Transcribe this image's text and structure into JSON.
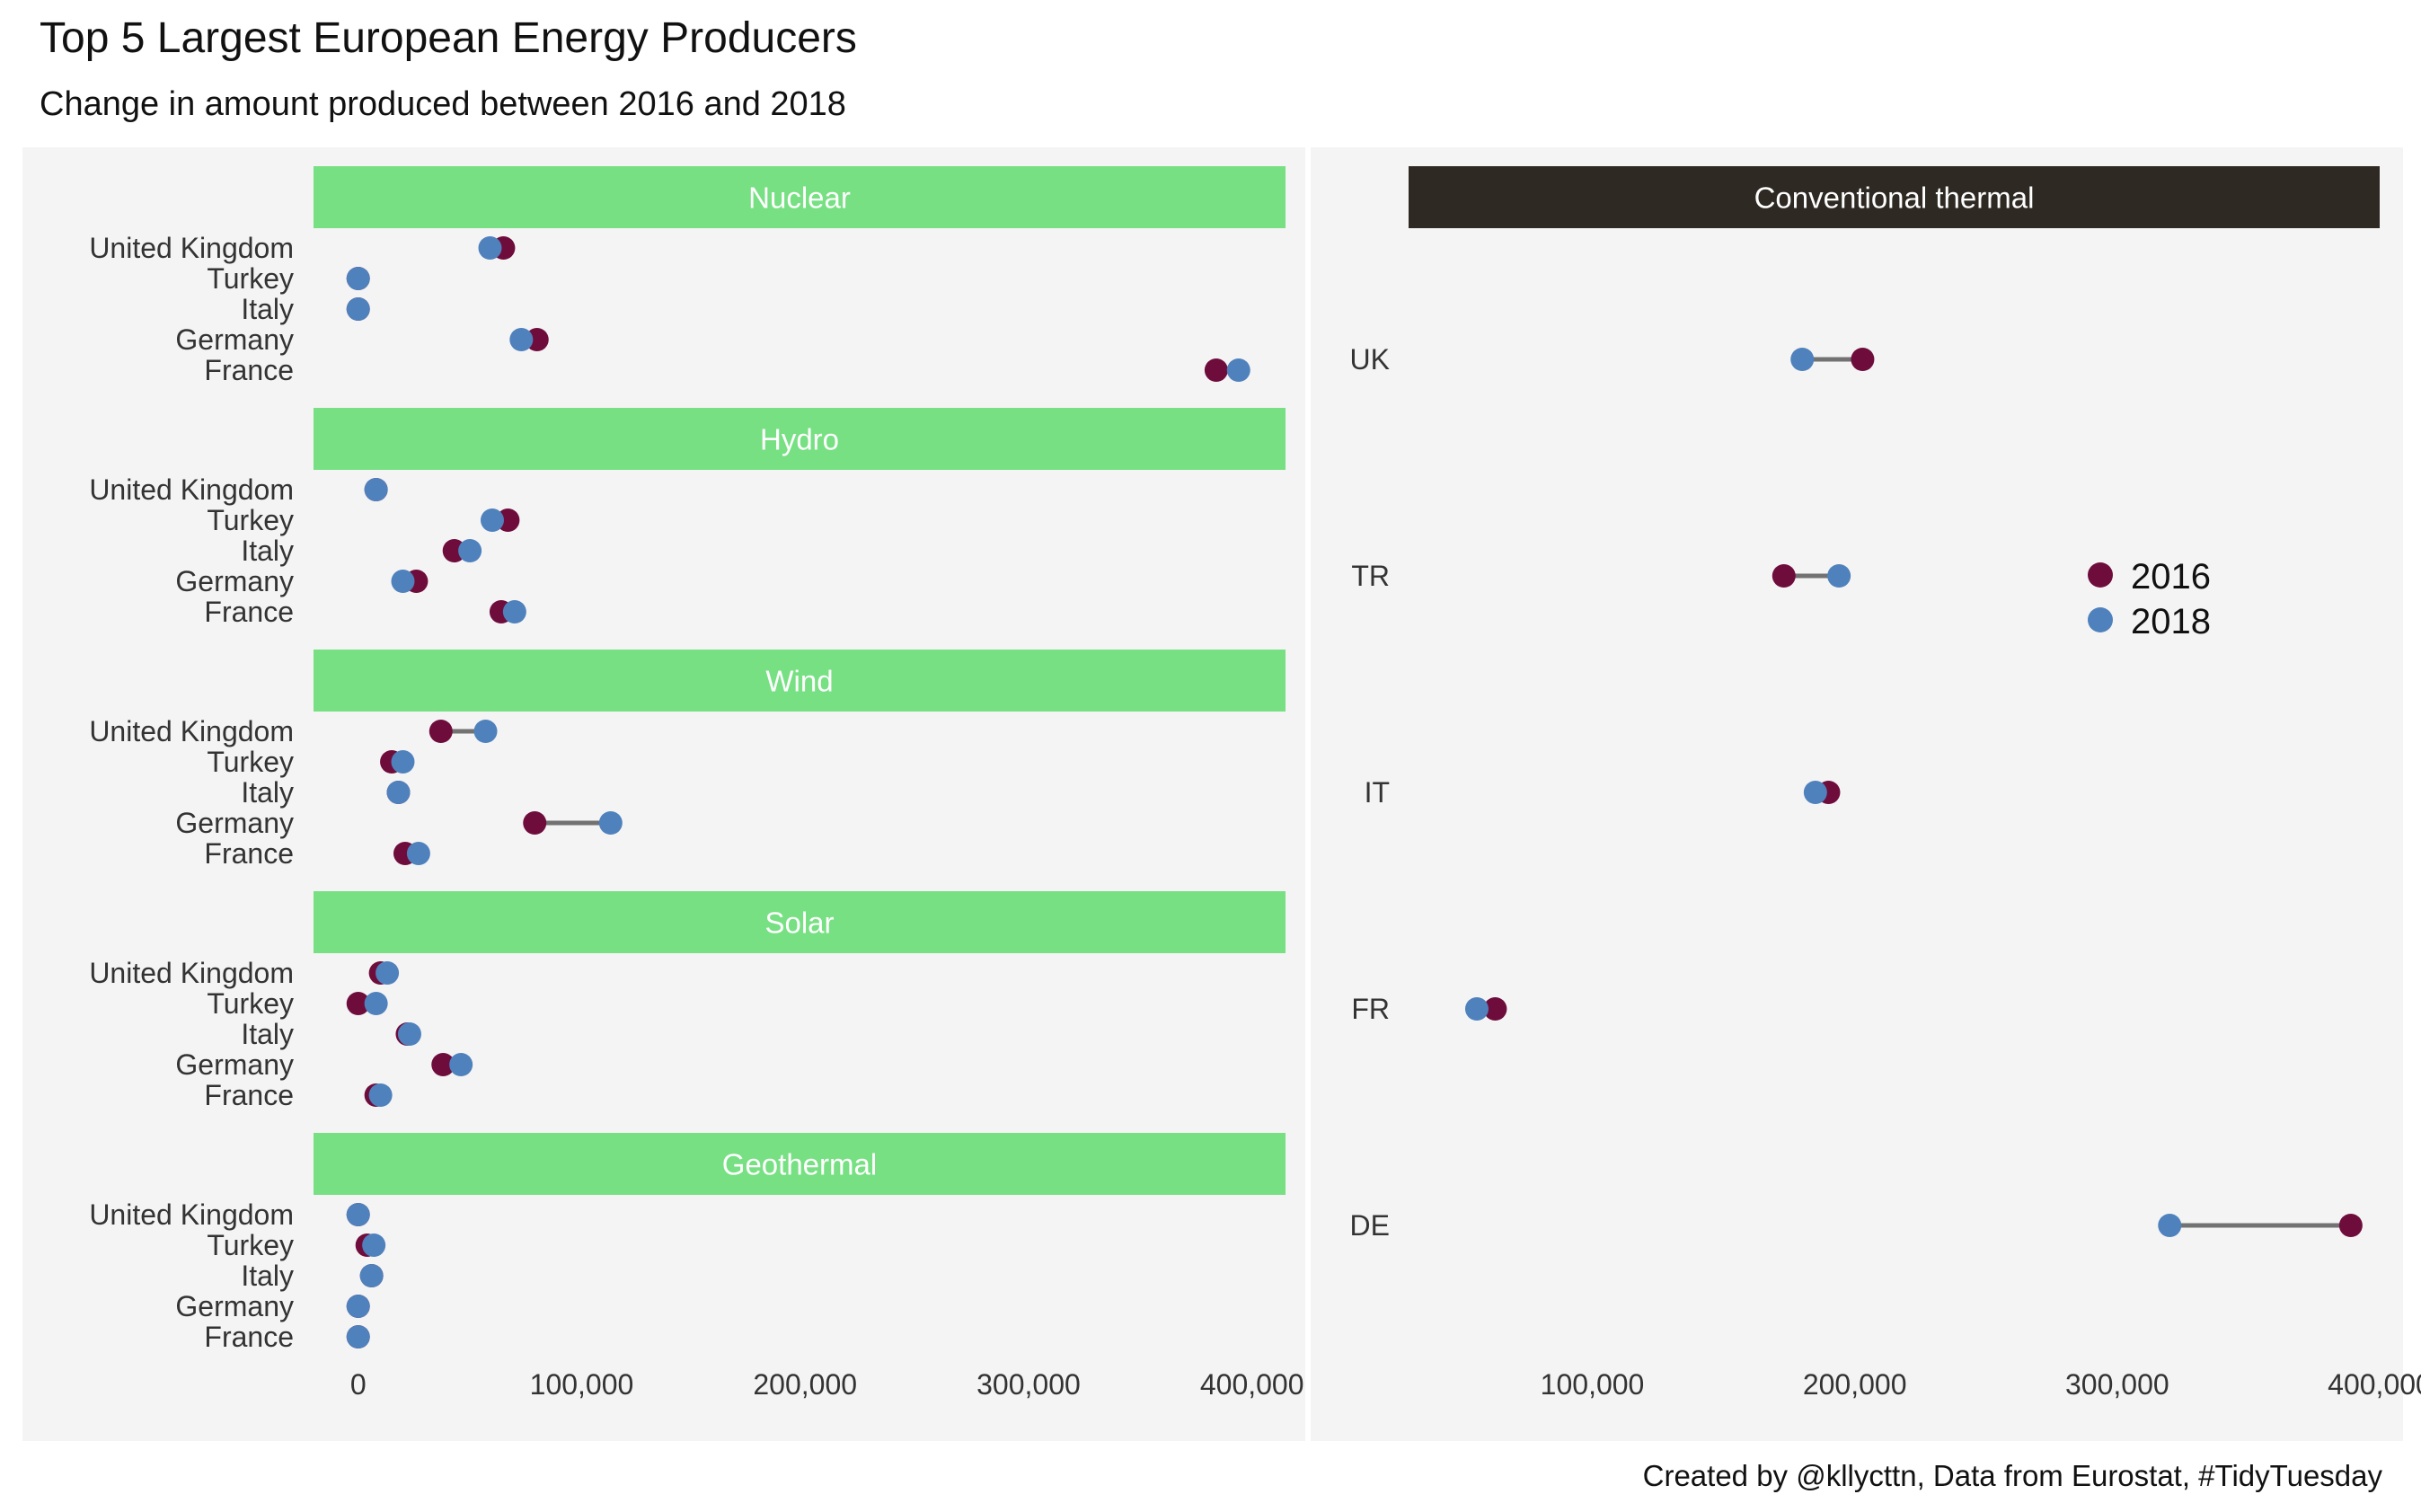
{
  "chart_data": {
    "type": "dumbbell",
    "title": "Top 5 Largest European Energy Producers",
    "subtitle": "Change in amount produced between 2016 and 2018",
    "caption": "Created by @kllycttn, Data from Eurostat, #TidyTuesday",
    "colors": {
      "2016": "#6e0d3c",
      "2018": "#4f81bd",
      "strip_left": "#77e083",
      "strip_right": "#2e2922",
      "panel_bg": "#f4f4f4",
      "segment": "#727272"
    },
    "legend": {
      "placement": "right-inside",
      "entries": [
        {
          "key": "2016",
          "label": "2016"
        },
        {
          "key": "2018",
          "label": "2018"
        }
      ]
    },
    "left_panels": {
      "x_ticks": [
        {
          "value": 0,
          "label": "0"
        },
        {
          "value": 100000,
          "label": "100,000"
        },
        {
          "value": 200000,
          "label": "200,000"
        },
        {
          "value": 300000,
          "label": "300,000"
        },
        {
          "value": 400000,
          "label": "400,000"
        }
      ],
      "xlim": [
        -20000,
        415000
      ],
      "facets": [
        {
          "name": "Nuclear",
          "rows": [
            {
              "country": "United Kingdom",
              "v2016": 65000,
              "v2018": 59000
            },
            {
              "country": "Turkey",
              "v2016": 0,
              "v2018": 0
            },
            {
              "country": "Italy",
              "v2016": 0,
              "v2018": 0
            },
            {
              "country": "Germany",
              "v2016": 80000,
              "v2018": 73000
            },
            {
              "country": "France",
              "v2016": 384000,
              "v2018": 394000
            }
          ]
        },
        {
          "name": "Hydro",
          "rows": [
            {
              "country": "United Kingdom",
              "v2016": 8000,
              "v2018": 8000
            },
            {
              "country": "Turkey",
              "v2016": 67000,
              "v2018": 60000
            },
            {
              "country": "Italy",
              "v2016": 43000,
              "v2018": 50000
            },
            {
              "country": "Germany",
              "v2016": 26000,
              "v2018": 20000
            },
            {
              "country": "France",
              "v2016": 64000,
              "v2018": 70000
            }
          ]
        },
        {
          "name": "Wind",
          "rows": [
            {
              "country": "United Kingdom",
              "v2016": 37000,
              "v2018": 57000
            },
            {
              "country": "Turkey",
              "v2016": 15000,
              "v2018": 20000
            },
            {
              "country": "Italy",
              "v2016": 18000,
              "v2018": 18000
            },
            {
              "country": "Germany",
              "v2016": 79000,
              "v2018": 113000
            },
            {
              "country": "France",
              "v2016": 21000,
              "v2018": 27000
            }
          ]
        },
        {
          "name": "Solar",
          "rows": [
            {
              "country": "United Kingdom",
              "v2016": 10000,
              "v2018": 13000
            },
            {
              "country": "Turkey",
              "v2016": 0,
              "v2018": 8000
            },
            {
              "country": "Italy",
              "v2016": 22000,
              "v2018": 23000
            },
            {
              "country": "Germany",
              "v2016": 38000,
              "v2018": 46000
            },
            {
              "country": "France",
              "v2016": 8000,
              "v2018": 10000
            }
          ]
        },
        {
          "name": "Geothermal",
          "rows": [
            {
              "country": "United Kingdom",
              "v2016": 0,
              "v2018": 0
            },
            {
              "country": "Turkey",
              "v2016": 4000,
              "v2018": 7000
            },
            {
              "country": "Italy",
              "v2016": 6000,
              "v2018": 6000
            },
            {
              "country": "Germany",
              "v2016": 0,
              "v2018": 0
            },
            {
              "country": "France",
              "v2016": 0,
              "v2018": 0
            }
          ]
        }
      ]
    },
    "right_panel": {
      "name": "Conventional thermal",
      "x_ticks": [
        {
          "value": 100000,
          "label": "100,000"
        },
        {
          "value": 200000,
          "label": "200,000"
        },
        {
          "value": 300000,
          "label": "300,000"
        },
        {
          "value": 400000,
          "label": "400,000"
        }
      ],
      "xlim": [
        30000,
        400000
      ],
      "rows": [
        {
          "country": "UK",
          "v2016": 203000,
          "v2018": 180000
        },
        {
          "country": "TR",
          "v2016": 173000,
          "v2018": 194000
        },
        {
          "country": "IT",
          "v2016": 190000,
          "v2018": 185000
        },
        {
          "country": "FR",
          "v2016": 63000,
          "v2018": 56000
        },
        {
          "country": "DE",
          "v2016": 389000,
          "v2018": 320000
        }
      ]
    }
  }
}
